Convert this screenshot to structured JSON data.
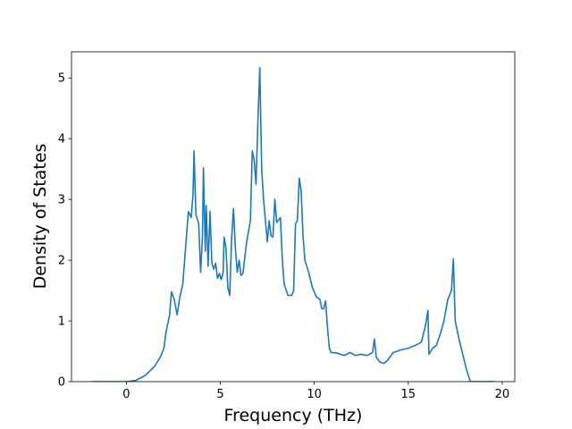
{
  "chart_data": {
    "type": "line",
    "x_label": "Frequency (THz)",
    "y_label": "Density of States",
    "color": "#1f77b4",
    "xlim": [
      -2.92,
      20.67
    ],
    "ylim": [
      0,
      5.43
    ],
    "xticks": [
      0,
      5,
      10,
      15,
      20
    ],
    "yticks": [
      0,
      1,
      2,
      3,
      4,
      5
    ],
    "x": [
      -1.85,
      0,
      0.5,
      1,
      1.5,
      1.8,
      2,
      2.1,
      2.3,
      2.4,
      2.55,
      2.7,
      2.85,
      3,
      3.2,
      3.3,
      3.45,
      3.55,
      3.6,
      3.7,
      3.85,
      3.95,
      4.05,
      4.1,
      4.2,
      4.25,
      4.35,
      4.45,
      4.55,
      4.65,
      4.75,
      4.85,
      4.95,
      5.05,
      5.15,
      5.2,
      5.3,
      5.4,
      5.5,
      5.6,
      5.7,
      5.8,
      5.9,
      6,
      6.1,
      6.2,
      6.4,
      6.6,
      6.7,
      6.8,
      6.9,
      7,
      7.1,
      7.2,
      7.3,
      7.5,
      7.6,
      7.7,
      7.8,
      7.9,
      8,
      8.2,
      8.3,
      8.4,
      8.6,
      8.8,
      8.9,
      9,
      9.1,
      9.2,
      9.3,
      9.4,
      9.5,
      9.7,
      9.9,
      10.1,
      10.3,
      10.4,
      10.5,
      10.6,
      10.7,
      10.8,
      10.9,
      11.2,
      11.6,
      11.9,
      12.2,
      12.5,
      12.8,
      13.1,
      13.2,
      13.3,
      13.5,
      13.7,
      13.9,
      14.2,
      14.6,
      15,
      15.4,
      15.7,
      15.9,
      16.05,
      16.1,
      16.3,
      16.5,
      16.7,
      16.9,
      17.1,
      17.3,
      17.4,
      17.5,
      17.7,
      17.9,
      18.1,
      18.3,
      19.6
    ],
    "values": [
      0,
      0,
      0.02,
      0.1,
      0.25,
      0.4,
      0.55,
      0.8,
      1.1,
      1.48,
      1.35,
      1.1,
      1.4,
      1.6,
      2.4,
      2.8,
      2.7,
      3.1,
      3.8,
      2.75,
      2.6,
      1.8,
      2.4,
      3.52,
      2.15,
      2.9,
      1.9,
      2.8,
      1.95,
      1.85,
      1.95,
      1.7,
      1.78,
      1.68,
      1.8,
      2.38,
      2.2,
      1.55,
      1.42,
      2.35,
      2.85,
      2.2,
      1.8,
      2.0,
      1.75,
      1.78,
      2.3,
      2.65,
      3.8,
      3.65,
      3.25,
      4.3,
      5.17,
      3.5,
      3.0,
      2.3,
      2.65,
      2.4,
      2.38,
      3.0,
      2.62,
      2.7,
      2.0,
      1.6,
      1.42,
      1.42,
      1.5,
      2.6,
      2.65,
      3.35,
      3.15,
      2.4,
      2.0,
      1.8,
      1.55,
      1.4,
      1.35,
      1.2,
      1.2,
      1.33,
      0.9,
      0.55,
      0.48,
      0.47,
      0.43,
      0.48,
      0.43,
      0.45,
      0.43,
      0.48,
      0.7,
      0.4,
      0.32,
      0.3,
      0.35,
      0.48,
      0.52,
      0.55,
      0.6,
      0.65,
      0.9,
      1.17,
      0.45,
      0.55,
      0.6,
      0.78,
      1.0,
      1.35,
      1.5,
      2.02,
      1.0,
      0.7,
      0.45,
      0.2,
      0,
      0
    ]
  }
}
